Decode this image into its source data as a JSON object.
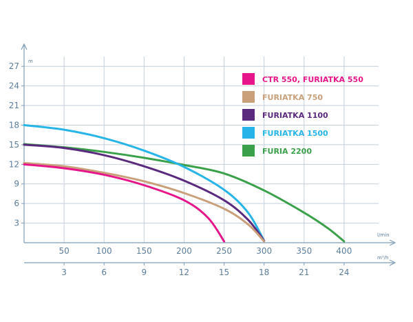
{
  "chart_data": {
    "type": "line",
    "y_unit": "m",
    "x_unit_primary": "l/min",
    "x_unit_secondary": "m³/h",
    "ylim": [
      0,
      28.5
    ],
    "xlim": [
      0,
      450
    ],
    "y_ticks": [
      3,
      6,
      9,
      12,
      15,
      18,
      21,
      24,
      27
    ],
    "x_ticks_primary": [
      50,
      100,
      150,
      200,
      250,
      300,
      350,
      400
    ],
    "x_ticks_secondary": [
      3,
      6,
      9,
      12,
      15,
      18,
      21,
      24
    ],
    "grid": true,
    "legend_position": "top-right",
    "series": [
      {
        "name": "CTR 550, FURIATKA 550",
        "color": "#e6168a",
        "points": [
          [
            0,
            12
          ],
          [
            50,
            11.4
          ],
          [
            100,
            10.4
          ],
          [
            150,
            8.8
          ],
          [
            200,
            6.5
          ],
          [
            230,
            3.8
          ],
          [
            250,
            0.2
          ]
        ]
      },
      {
        "name": "FURIATKA 750",
        "color": "#c9a07a",
        "points": [
          [
            0,
            12.2
          ],
          [
            50,
            11.7
          ],
          [
            100,
            10.7
          ],
          [
            150,
            9.4
          ],
          [
            200,
            7.6
          ],
          [
            250,
            5.2
          ],
          [
            280,
            2.8
          ],
          [
            300,
            0.2
          ]
        ]
      },
      {
        "name": "FURIATKA 1100",
        "color": "#5a2a7e",
        "points": [
          [
            0,
            15
          ],
          [
            50,
            14.5
          ],
          [
            100,
            13.4
          ],
          [
            150,
            11.7
          ],
          [
            200,
            9.5
          ],
          [
            250,
            6.5
          ],
          [
            280,
            3.5
          ],
          [
            300,
            0.3
          ]
        ]
      },
      {
        "name": "FURIATKA 1500",
        "color": "#27b5e8",
        "points": [
          [
            0,
            18
          ],
          [
            50,
            17.3
          ],
          [
            100,
            16
          ],
          [
            150,
            14.1
          ],
          [
            200,
            11.6
          ],
          [
            250,
            8.1
          ],
          [
            280,
            4.6
          ],
          [
            300,
            0.3
          ]
        ]
      },
      {
        "name": "FURIA 2200",
        "color": "#3aa14a",
        "points": [
          [
            0,
            15.1
          ],
          [
            50,
            14.6
          ],
          [
            100,
            13.9
          ],
          [
            150,
            13
          ],
          [
            200,
            11.9
          ],
          [
            250,
            10.6
          ],
          [
            300,
            8
          ],
          [
            350,
            4.6
          ],
          [
            380,
            2.2
          ],
          [
            400,
            0.2
          ]
        ]
      }
    ]
  }
}
